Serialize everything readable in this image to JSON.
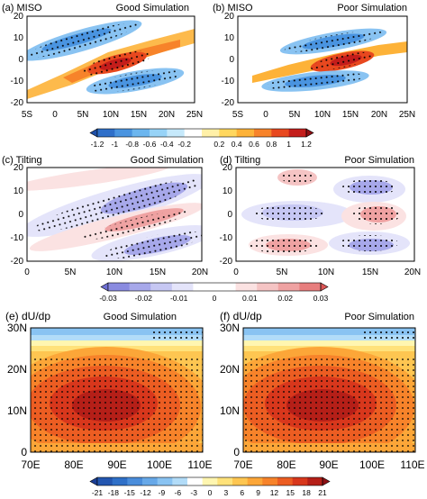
{
  "chart_data": [
    {
      "type": "heatmap",
      "panel_label": "(a) MISO",
      "title": "Good Simulation",
      "x_ticks": [
        "5S",
        "0",
        "5N",
        "10N",
        "15N",
        "20N",
        "25N"
      ],
      "y_ticks": [
        "20",
        "10",
        "0",
        "-10",
        "-20"
      ],
      "xlim": [
        -5,
        25
      ],
      "ylim": [
        -20,
        20
      ],
      "pattern": "positive band tilted from (x -3, y -6) to (x 22, y 7), peak about 1.0 near (x 12, y -1); negative bands above and below; stippling marks significance"
    },
    {
      "type": "heatmap",
      "panel_label": "(b) MISO",
      "title": "Poor Simulation",
      "x_ticks": [
        "5S",
        "0",
        "5N",
        "10N",
        "15N",
        "20N",
        "25N"
      ],
      "y_ticks": [
        "20",
        "10",
        "0",
        "-10",
        "-20"
      ],
      "xlim": [
        -5,
        25
      ],
      "ylim": [
        -20,
        20
      ],
      "pattern": "weaker tilted positive band peaking about 1.0 near (x 13, y 0); negative bands above and below"
    },
    {
      "type": "heatmap",
      "colorbar_ticks": [
        "-1.2",
        "-1",
        "-0.8",
        "-0.6",
        "-0.4",
        "-0.2",
        "0.2",
        "0.4",
        "0.6",
        "0.8",
        "1",
        "1.2"
      ],
      "colors": [
        "#1e4fa8",
        "#2f6fc9",
        "#4a94e0",
        "#6cb6ef",
        "#97d3f7",
        "#c6e9fb",
        "#ffffff",
        "#fff0a8",
        "#ffd75e",
        "#fdb238",
        "#f7832a",
        "#e8481f",
        "#c41d1b",
        "#8f0f13"
      ]
    },
    {
      "type": "heatmap",
      "panel_label": "(c) Tilting",
      "title": "Good Simulation",
      "x_ticks": [
        "0",
        "5N",
        "10N",
        "15N",
        "20N"
      ],
      "y_ticks": [
        "20",
        "10",
        "0",
        "-10",
        "-20"
      ],
      "xlim": [
        0,
        20
      ],
      "ylim": [
        -20,
        20
      ],
      "pattern": "alternating tilted bands: negative near (x 13, y 8), positive near (x 14, y -2), negative near (x 16, y -12)"
    },
    {
      "type": "heatmap",
      "panel_label": "(d) Tilting",
      "title": "Poor Simulation",
      "x_ticks": [
        "0",
        "5N",
        "10N",
        "15N",
        "20N"
      ],
      "y_ticks": [
        "20",
        "10",
        "0",
        "-10",
        "-20"
      ],
      "xlim": [
        0,
        20
      ],
      "ylim": [
        -20,
        20
      ],
      "pattern": "blob structure: negative near (x 16, y 11) and (x 6, y 1) and (x 16, y -13); positive near (x 16, y 0), (x 6, y -13), (x 7, y 18)"
    },
    {
      "type": "heatmap",
      "colorbar_ticks": [
        "-0.03",
        "-0.02",
        "-0.01",
        "0",
        "0.01",
        "0.02",
        "0.03"
      ],
      "colors": [
        "#6e6fd4",
        "#8a8be0",
        "#a7a8ea",
        "#c6c7f3",
        "#e4e4fa",
        "#ffffff",
        "#ffffff",
        "#fbe2e2",
        "#f5c4c4",
        "#efa2a2",
        "#e77e7e",
        "#dc5656"
      ]
    },
    {
      "type": "heatmap",
      "panel_label": "(e) dU/dp",
      "title": "Good Simulation",
      "x_ticks": [
        "70E",
        "80E",
        "90E",
        "100E",
        "110E"
      ],
      "y_ticks": [
        "30N",
        "20N",
        "10N",
        "0"
      ],
      "xlim": [
        70,
        110
      ],
      "ylim": [
        0,
        30
      ],
      "pattern": "strong positive maximum (~21) near 87E, 10N; values decrease to near 0 and negative at 30N"
    },
    {
      "type": "heatmap",
      "panel_label": "(f) dU/dp",
      "title": "Poor Simulation",
      "x_ticks": [
        "70E",
        "80E",
        "90E",
        "100E",
        "110E"
      ],
      "y_ticks": [
        "30N",
        "20N",
        "10N",
        "0"
      ],
      "xlim": [
        70,
        110
      ],
      "ylim": [
        0,
        30
      ],
      "pattern": "strong positive maximum (~21) near 88E, 10N; values decrease northward, negative near 30N"
    },
    {
      "type": "heatmap",
      "colorbar_ticks": [
        "-21",
        "-18",
        "-15",
        "-12",
        "-9",
        "-6",
        "-3",
        "0",
        "3",
        "6",
        "9",
        "12",
        "15",
        "18",
        "21"
      ],
      "colors": [
        "#1a3e96",
        "#2356b0",
        "#2f70c8",
        "#4a8ddb",
        "#67a8e8",
        "#89c3f2",
        "#b2dcf8",
        "#ffffff",
        "#fff6b0",
        "#ffe27a",
        "#fec651",
        "#fca638",
        "#f7832a",
        "#ec5d22",
        "#d8371c",
        "#b51f18",
        "#8c1014"
      ]
    }
  ]
}
